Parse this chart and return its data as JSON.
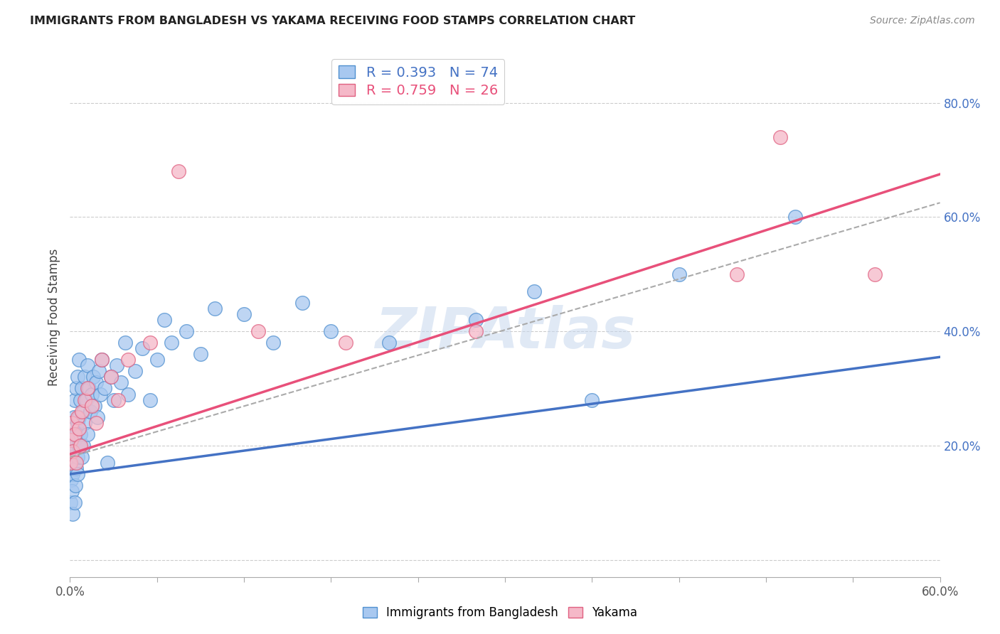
{
  "title": "IMMIGRANTS FROM BANGLADESH VS YAKAMA RECEIVING FOOD STAMPS CORRELATION CHART",
  "source": "Source: ZipAtlas.com",
  "ylabel": "Receiving Food Stamps",
  "legend1_label": "Immigrants from Bangladesh",
  "legend2_label": "Yakama",
  "R1": 0.393,
  "N1": 74,
  "R2": 0.759,
  "N2": 26,
  "blue_color": "#a8c8f0",
  "pink_color": "#f5b8c8",
  "blue_edge_color": "#5090d0",
  "pink_edge_color": "#e06080",
  "blue_line_color": "#4472c4",
  "pink_line_color": "#e8507a",
  "dashed_line_color": "#aaaaaa",
  "watermark": "ZIPAtlas",
  "xlim": [
    0.0,
    0.6
  ],
  "ylim": [
    -0.03,
    0.88
  ],
  "blue_line_x0": 0.0,
  "blue_line_y0": 0.15,
  "blue_line_x1": 0.6,
  "blue_line_y1": 0.355,
  "pink_line_x0": 0.0,
  "pink_line_y0": 0.185,
  "pink_line_x1": 0.6,
  "pink_line_y1": 0.675,
  "dash_line_x0": 0.0,
  "dash_line_y0": 0.18,
  "dash_line_x1": 0.6,
  "dash_line_y1": 0.625,
  "blue_dots_x": [
    0.0005,
    0.001,
    0.001,
    0.001,
    0.0015,
    0.0015,
    0.002,
    0.002,
    0.002,
    0.002,
    0.0025,
    0.003,
    0.003,
    0.003,
    0.003,
    0.0035,
    0.004,
    0.004,
    0.004,
    0.005,
    0.005,
    0.005,
    0.005,
    0.006,
    0.006,
    0.006,
    0.007,
    0.007,
    0.008,
    0.008,
    0.009,
    0.009,
    0.01,
    0.01,
    0.011,
    0.012,
    0.012,
    0.013,
    0.014,
    0.015,
    0.016,
    0.017,
    0.018,
    0.019,
    0.02,
    0.021,
    0.022,
    0.024,
    0.026,
    0.028,
    0.03,
    0.032,
    0.035,
    0.038,
    0.04,
    0.045,
    0.05,
    0.055,
    0.06,
    0.065,
    0.07,
    0.08,
    0.09,
    0.1,
    0.12,
    0.14,
    0.16,
    0.18,
    0.22,
    0.28,
    0.32,
    0.36,
    0.42,
    0.5
  ],
  "blue_dots_y": [
    0.1,
    0.14,
    0.16,
    0.18,
    0.12,
    0.2,
    0.08,
    0.15,
    0.19,
    0.22,
    0.25,
    0.1,
    0.17,
    0.21,
    0.28,
    0.13,
    0.16,
    0.22,
    0.3,
    0.15,
    0.18,
    0.24,
    0.32,
    0.2,
    0.25,
    0.35,
    0.22,
    0.28,
    0.18,
    0.3,
    0.2,
    0.26,
    0.24,
    0.32,
    0.28,
    0.22,
    0.34,
    0.3,
    0.26,
    0.29,
    0.32,
    0.27,
    0.31,
    0.25,
    0.33,
    0.29,
    0.35,
    0.3,
    0.17,
    0.32,
    0.28,
    0.34,
    0.31,
    0.38,
    0.29,
    0.33,
    0.37,
    0.28,
    0.35,
    0.42,
    0.38,
    0.4,
    0.36,
    0.44,
    0.43,
    0.38,
    0.45,
    0.4,
    0.38,
    0.42,
    0.47,
    0.28,
    0.5,
    0.6
  ],
  "pink_dots_x": [
    0.0005,
    0.001,
    0.0015,
    0.002,
    0.003,
    0.004,
    0.005,
    0.006,
    0.007,
    0.008,
    0.01,
    0.012,
    0.015,
    0.018,
    0.022,
    0.028,
    0.033,
    0.04,
    0.055,
    0.075,
    0.13,
    0.19,
    0.28,
    0.46,
    0.49,
    0.555
  ],
  "pink_dots_y": [
    0.17,
    0.21,
    0.24,
    0.19,
    0.22,
    0.17,
    0.25,
    0.23,
    0.2,
    0.26,
    0.28,
    0.3,
    0.27,
    0.24,
    0.35,
    0.32,
    0.28,
    0.35,
    0.38,
    0.68,
    0.4,
    0.38,
    0.4,
    0.5,
    0.74,
    0.5
  ]
}
